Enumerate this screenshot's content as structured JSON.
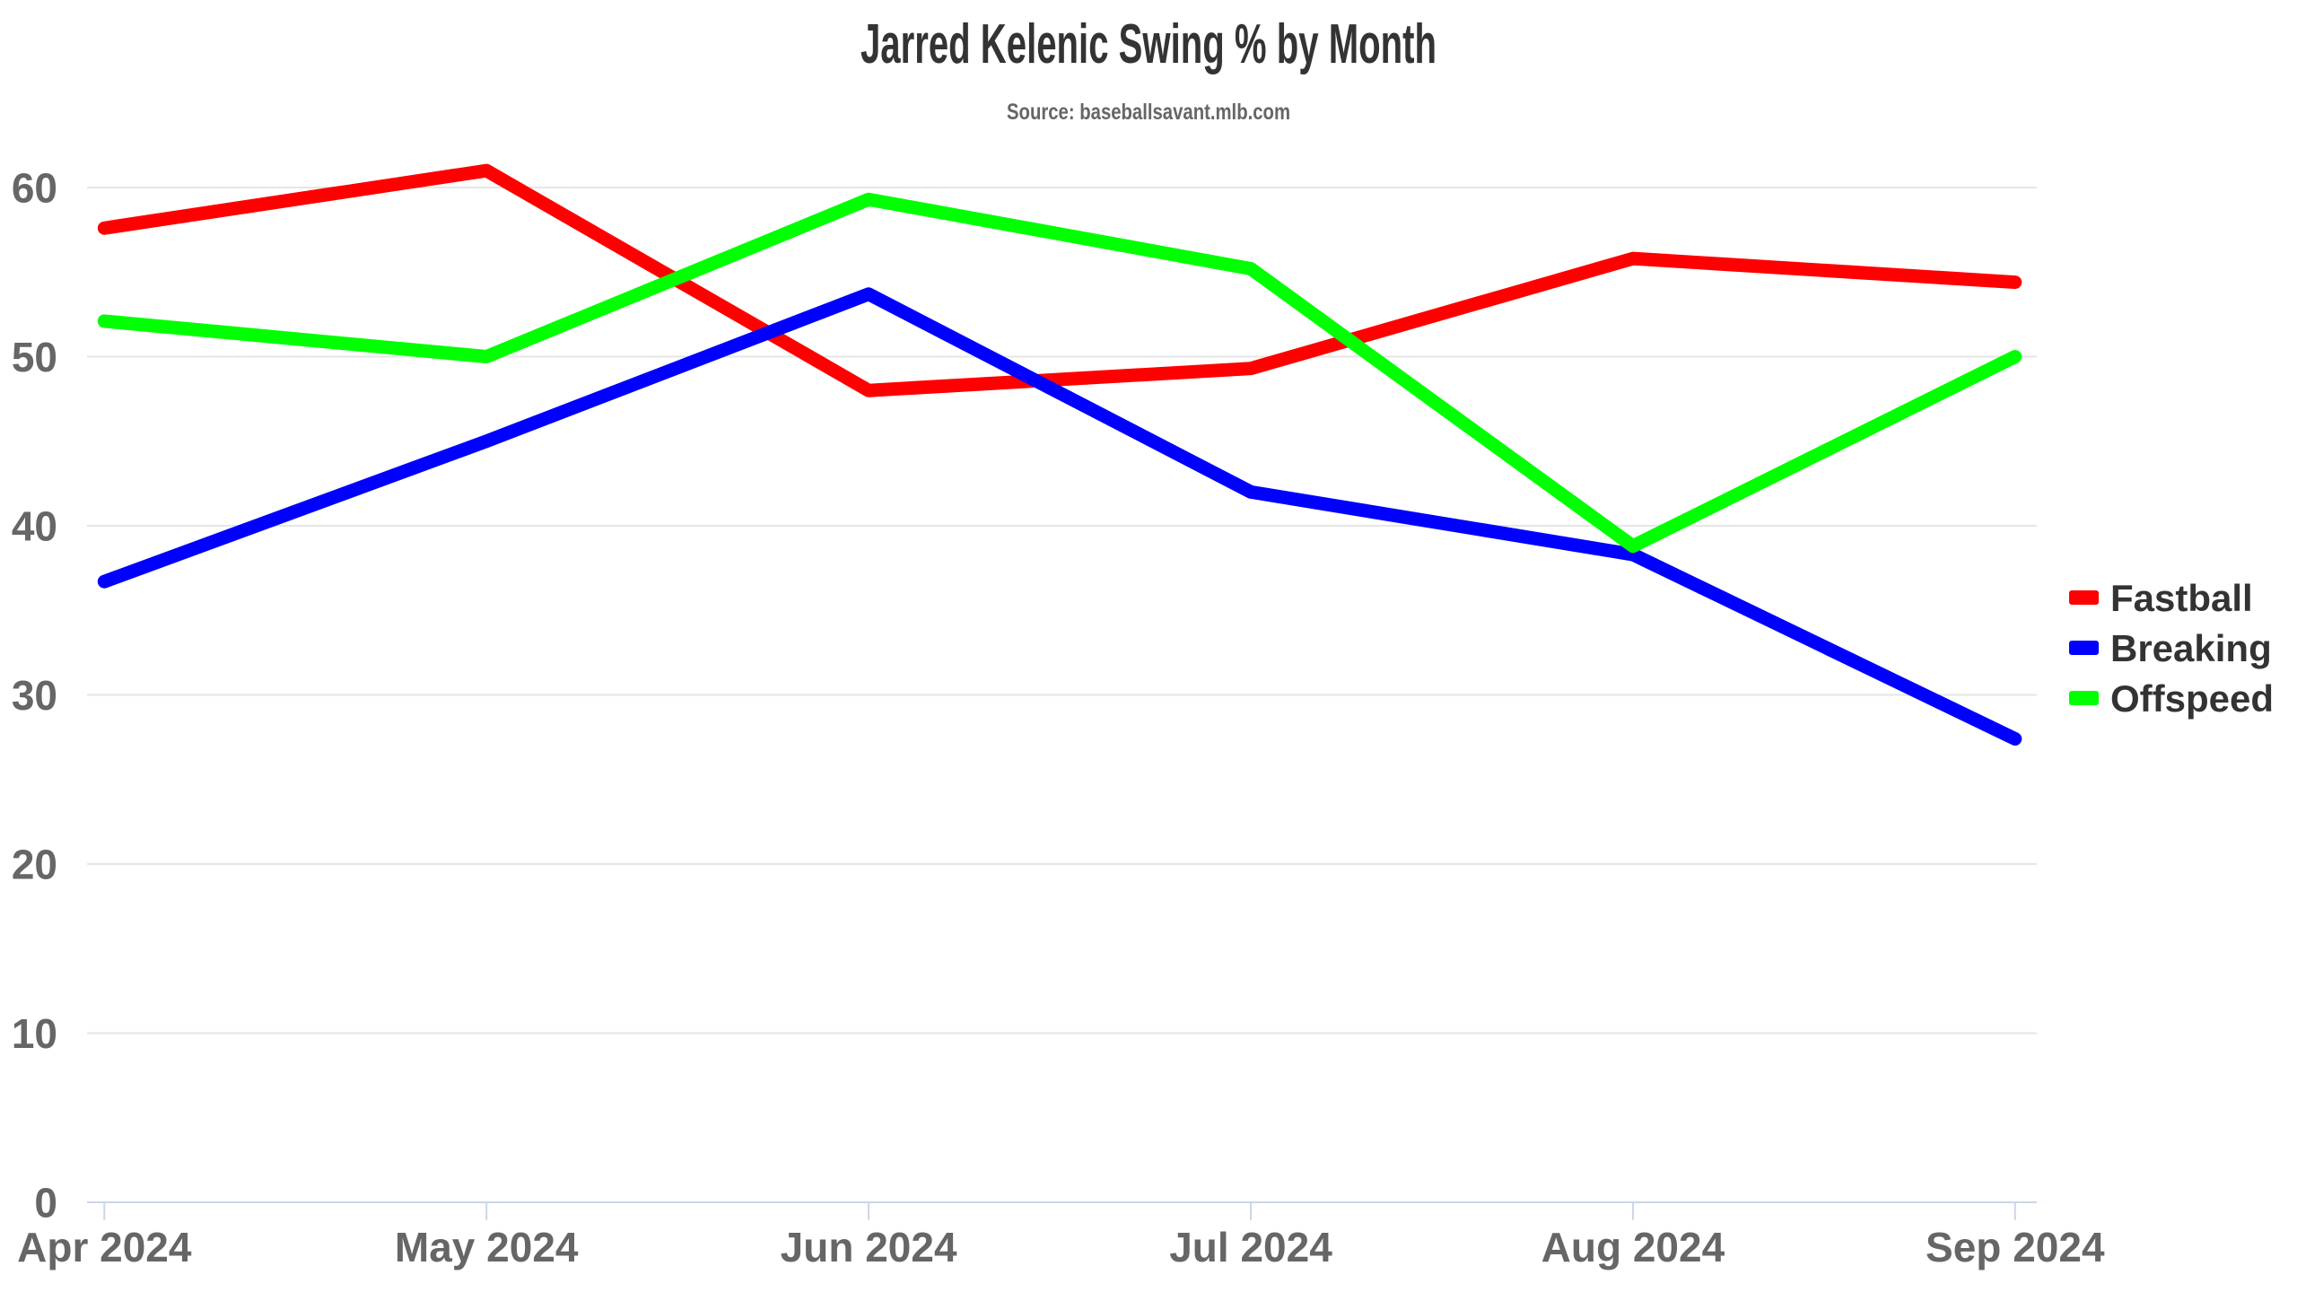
{
  "title": "Jarred Kelenic Swing % by Month",
  "subtitle": "Source: baseballsavant.mlb.com",
  "chart_data": {
    "type": "line",
    "categories": [
      "Apr 2024",
      "May 2024",
      "Jun 2024",
      "Jul 2024",
      "Aug 2024",
      "Sep 2024"
    ],
    "series": [
      {
        "name": "Fastball",
        "color": "#ff0000",
        "values": [
          57.6,
          61.0,
          48.0,
          49.3,
          55.8,
          54.4
        ]
      },
      {
        "name": "Breaking",
        "color": "#0000ff",
        "values": [
          36.7,
          45.0,
          53.7,
          42.0,
          38.3,
          27.4
        ]
      },
      {
        "name": "Offspeed",
        "color": "#00ff00",
        "values": [
          52.1,
          50.0,
          59.3,
          55.2,
          38.8,
          50.0
        ]
      }
    ],
    "title": "Jarred Kelenic Swing % by Month",
    "subtitle": "Source: baseballsavant.mlb.com",
    "xlabel": "",
    "ylabel": "",
    "ylim": [
      0,
      60
    ],
    "ytick_step": 10,
    "grid": "horizontal-only",
    "legend_position": "right"
  },
  "colors": {
    "title": "#333333",
    "subtitle": "#666666",
    "axis_labels": "#666666",
    "gridline": "#e6e6e6",
    "axis_line": "#ccd6eb",
    "background": "#ffffff",
    "legend_text": "#333333"
  }
}
